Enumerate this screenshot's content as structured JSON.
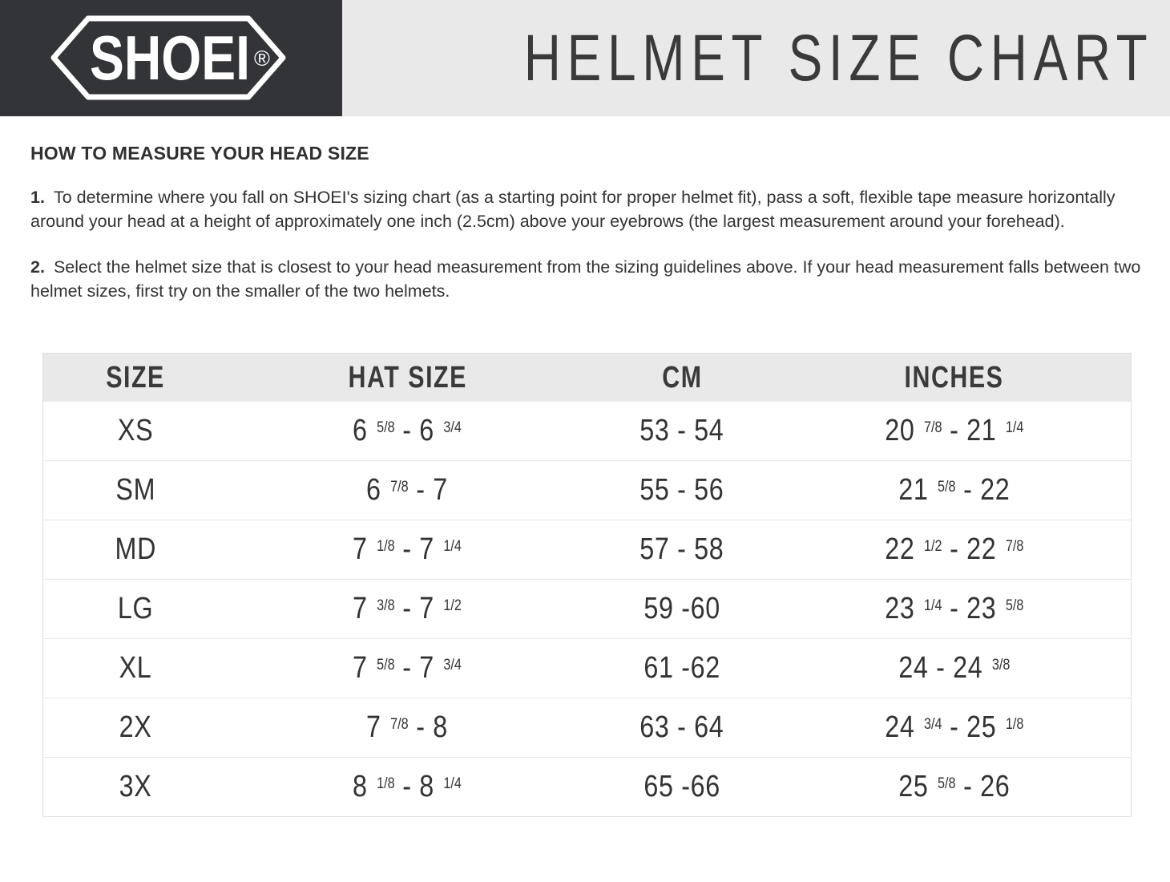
{
  "header": {
    "brand": "SHOEI",
    "registered_mark": "®",
    "title": "HELMET SIZE CHART"
  },
  "colors": {
    "brand_bg": "#333437",
    "band_bg": "#e9e9e9",
    "text": "#333333",
    "table_border": "#e0e0e0"
  },
  "instructions": {
    "heading": "HOW TO MEASURE YOUR HEAD SIZE",
    "steps": [
      {
        "number": "1.",
        "text": "To determine where you fall on SHOEI's sizing chart (as a starting point for proper helmet fit), pass a soft, flexible tape measure horizontally around your head at a height of approximately one inch (2.5cm) above your eyebrows (the largest measurement around your forehead)."
      },
      {
        "number": "2.",
        "text": "Select the helmet size that is closest to your head measurement from the sizing guidelines above. If your head measurement falls between two helmet sizes, first try on the smaller of the two helmets."
      }
    ]
  },
  "size_table": {
    "columns": [
      "SIZE",
      "HAT SIZE",
      "CM",
      "INCHES"
    ],
    "rows": [
      {
        "size": "XS",
        "hat_size": "6 ^5/8^ - 6 ^3/4^",
        "cm": "53 - 54",
        "inches": "20 ^7/8^ - 21 ^1/4^"
      },
      {
        "size": "SM",
        "hat_size": "6 ^7/8^ - 7",
        "cm": "55 - 56",
        "inches": "21 ^5/8^ - 22"
      },
      {
        "size": "MD",
        "hat_size": "7 ^1/8^ - 7 ^1/4^",
        "cm": "57 - 58",
        "inches": "22 ^1/2^ - 22 ^7/8^"
      },
      {
        "size": "LG",
        "hat_size": "7 ^3/8^ - 7 ^1/2^",
        "cm": "59 -60",
        "inches": "23 ^1/4^ - 23 ^5/8^"
      },
      {
        "size": "XL",
        "hat_size": "7 ^5/8^ - 7 ^3/4^",
        "cm": "61 -62",
        "inches": "24 - 24 ^3/8^"
      },
      {
        "size": "2X",
        "hat_size": "7 ^7/8^ - 8",
        "cm": "63 - 64",
        "inches": "24 ^3/4^ - 25 ^1/8^"
      },
      {
        "size": "3X",
        "hat_size": "8 ^1/8^ - 8 ^1/4^",
        "cm": "65 -66",
        "inches": "25 ^5/8^ - 26"
      }
    ]
  }
}
